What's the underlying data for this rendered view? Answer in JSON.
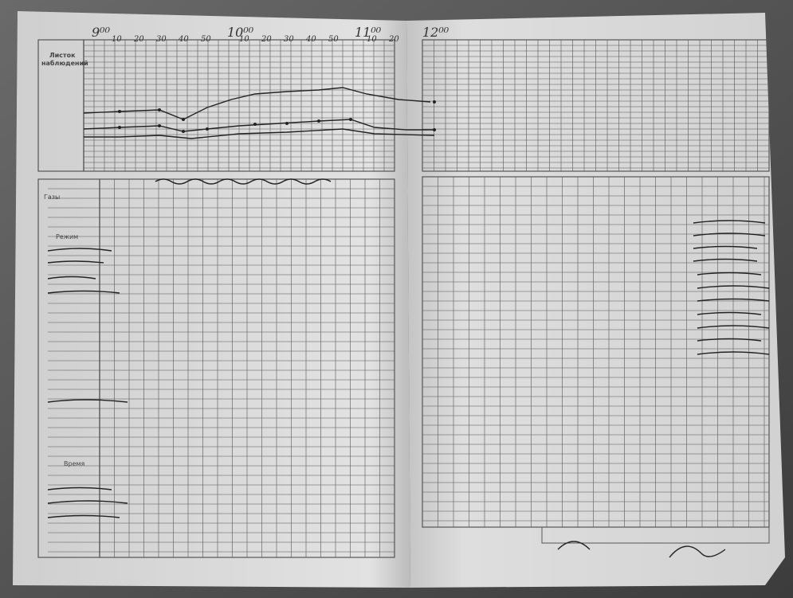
{
  "header": {
    "title_line1": "Листок",
    "title_line2": "наблюдений"
  },
  "hours": [
    "9⁰⁰",
    "10⁰⁰",
    "11⁰⁰",
    "12⁰⁰"
  ],
  "minutes": [
    "10",
    "20",
    "30",
    "40",
    "50"
  ],
  "left_labels": [
    "Газы",
    "Режим",
    "Время"
  ]
}
